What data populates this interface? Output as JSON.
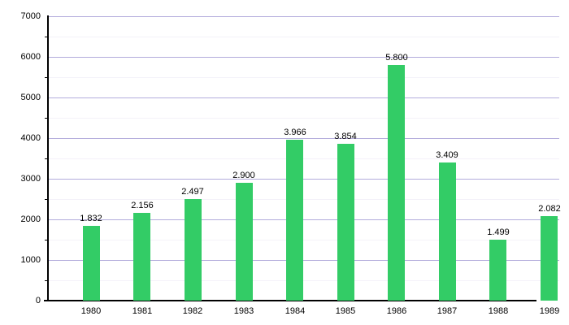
{
  "chart_data": {
    "type": "bar",
    "title": "",
    "xlabel": "",
    "ylabel": "",
    "categories": [
      "1980",
      "1981",
      "1982",
      "1983",
      "1984",
      "1985",
      "1986",
      "1987",
      "1988",
      "1989"
    ],
    "values": [
      1832,
      2156,
      2497,
      2900,
      3966,
      3854,
      5800,
      3409,
      1499,
      2082
    ],
    "bar_labels": [
      "1.832",
      "2.156",
      "2.497",
      "2.900",
      "3.966",
      "3.854",
      "5.800",
      "3.409",
      "1.499",
      "2.082"
    ],
    "ylim": [
      0,
      7000
    ],
    "ytick_step": 1000,
    "ytick_minor_step": 500,
    "ytick_labels": [
      "0",
      "1000",
      "2000",
      "3000",
      "4000",
      "5000",
      "6000",
      "7000"
    ],
    "grid": true,
    "legend": "none",
    "colors": {
      "bar": "#33cc66",
      "grid_major": "#b3acdc",
      "grid_minor": "#f4f2f9",
      "axis": "#000000",
      "text": "#000000",
      "background": "#ffffff"
    }
  }
}
